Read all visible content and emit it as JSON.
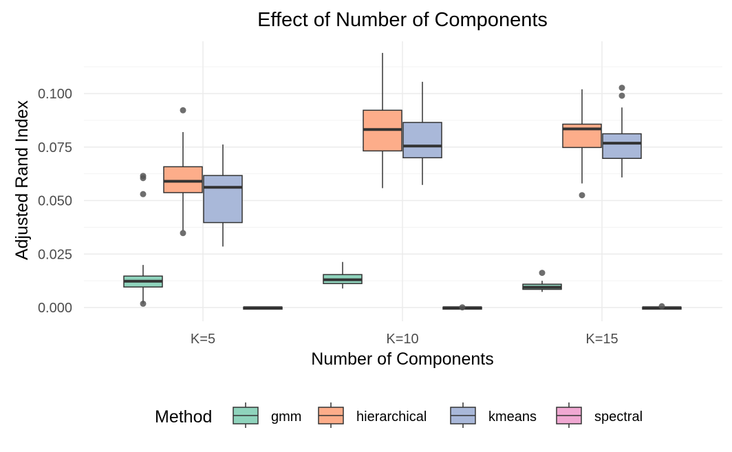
{
  "chart_data": {
    "type": "boxplot",
    "title": "Effect of Number of Components",
    "xlabel": "Number of Components",
    "ylabel": "Adjusted Rand Index",
    "categories": [
      "K=5",
      "K=10",
      "K=15"
    ],
    "y_ticks": [
      "0.000",
      "0.025",
      "0.050",
      "0.075",
      "0.100"
    ],
    "y_tick_values": [
      0,
      0.025,
      0.05,
      0.075,
      0.1
    ],
    "ylim": [
      -0.003,
      0.12
    ],
    "grid": true,
    "legend": {
      "title": "Method",
      "placement": "bottom",
      "entries": [
        "gmm",
        "hierarchical",
        "kmeans",
        "spectral"
      ]
    },
    "colors": {
      "gmm": "#8fd3bc",
      "hierarchical": "#fdad8a",
      "kmeans": "#a9b8d9",
      "spectral": "#f0a8d2"
    },
    "series": [
      {
        "name": "gmm",
        "boxes": [
          {
            "category": "K=5",
            "whisker_low": 0.0018,
            "q1": 0.0096,
            "median": 0.0123,
            "q3": 0.0147,
            "whisker_high": 0.0199,
            "outliers": [
              0.0018,
              0.053,
              0.0605,
              0.0615
            ]
          },
          {
            "category": "K=10",
            "whisker_low": 0.0089,
            "q1": 0.0112,
            "median": 0.013,
            "q3": 0.0154,
            "whisker_high": 0.0213,
            "outliers": []
          },
          {
            "category": "K=15",
            "whisker_low": 0.0073,
            "q1": 0.0085,
            "median": 0.0095,
            "q3": 0.0109,
            "whisker_high": 0.0125,
            "outliers": [
              0.0162
            ]
          }
        ]
      },
      {
        "name": "hierarchical",
        "boxes": [
          {
            "category": "K=5",
            "whisker_low": 0.036,
            "q1": 0.0537,
            "median": 0.059,
            "q3": 0.0658,
            "whisker_high": 0.082,
            "outliers": [
              0.0348,
              0.0922
            ]
          },
          {
            "category": "K=10",
            "whisker_low": 0.0558,
            "q1": 0.0732,
            "median": 0.0832,
            "q3": 0.0922,
            "whisker_high": 0.119,
            "outliers": []
          },
          {
            "category": "K=15",
            "whisker_low": 0.058,
            "q1": 0.0748,
            "median": 0.0835,
            "q3": 0.0857,
            "whisker_high": 0.102,
            "outliers": [
              0.0525
            ]
          }
        ]
      },
      {
        "name": "kmeans",
        "boxes": [
          {
            "category": "K=5",
            "whisker_low": 0.0285,
            "q1": 0.0397,
            "median": 0.0562,
            "q3": 0.0617,
            "whisker_high": 0.0762,
            "outliers": []
          },
          {
            "category": "K=10",
            "whisker_low": 0.0573,
            "q1": 0.07,
            "median": 0.0755,
            "q3": 0.0865,
            "whisker_high": 0.1055,
            "outliers": []
          },
          {
            "category": "K=15",
            "whisker_low": 0.0608,
            "q1": 0.0697,
            "median": 0.0768,
            "q3": 0.0812,
            "whisker_high": 0.0935,
            "outliers": [
              0.099,
              0.1027
            ]
          }
        ]
      },
      {
        "name": "spectral",
        "boxes": [
          {
            "category": "K=5",
            "whisker_low": -0.0004,
            "q1": -0.0003,
            "median": -0.0001,
            "q3": 0.0002,
            "whisker_high": 0.0003,
            "outliers": []
          },
          {
            "category": "K=10",
            "whisker_low": -0.0004,
            "q1": -0.0003,
            "median": -0.0001,
            "q3": 0.0002,
            "whisker_high": 0.0003,
            "outliers": [
              0.0001
            ]
          },
          {
            "category": "K=15",
            "whisker_low": -0.0004,
            "q1": -0.0003,
            "median": -0.0001,
            "q3": 0.0002,
            "whisker_high": 0.0003,
            "outliers": [
              0.0006
            ]
          }
        ]
      }
    ]
  }
}
